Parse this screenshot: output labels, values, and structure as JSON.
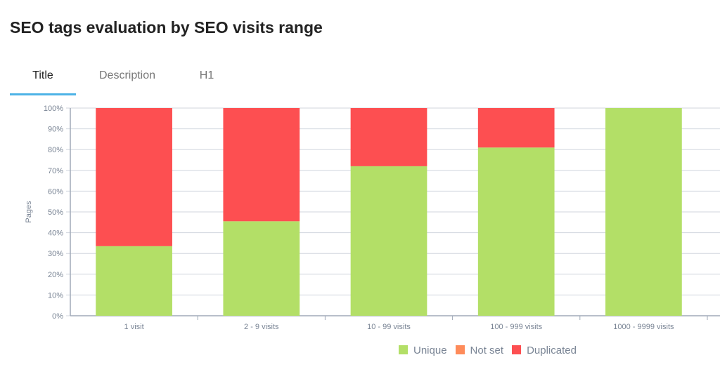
{
  "title": "SEO tags evaluation by SEO visits range",
  "tabs": [
    {
      "label": "Title",
      "active": true
    },
    {
      "label": "Description",
      "active": false
    },
    {
      "label": "H1",
      "active": false
    }
  ],
  "chart_data": {
    "type": "bar",
    "stacked": true,
    "categories": [
      "1 visit",
      "2 - 9 visits",
      "10 - 99 visits",
      "100 - 999 visits",
      "1000 - 9999 visits"
    ],
    "series": [
      {
        "name": "Unique",
        "color": "#b3df67",
        "values": [
          33.5,
          45.5,
          72,
          81,
          100
        ]
      },
      {
        "name": "Not set",
        "color": "#fe8b5a",
        "values": [
          0,
          0,
          0,
          0,
          0
        ]
      },
      {
        "name": "Duplicated",
        "color": "#fd4f51",
        "values": [
          66.5,
          54.5,
          28,
          19,
          0
        ]
      }
    ],
    "ylabel": "Pages",
    "ylim": [
      0,
      100
    ],
    "yticks": [
      "0%",
      "10%",
      "20%",
      "30%",
      "40%",
      "50%",
      "60%",
      "70%",
      "80%",
      "90%",
      "100%"
    ],
    "legend": "bottom"
  }
}
